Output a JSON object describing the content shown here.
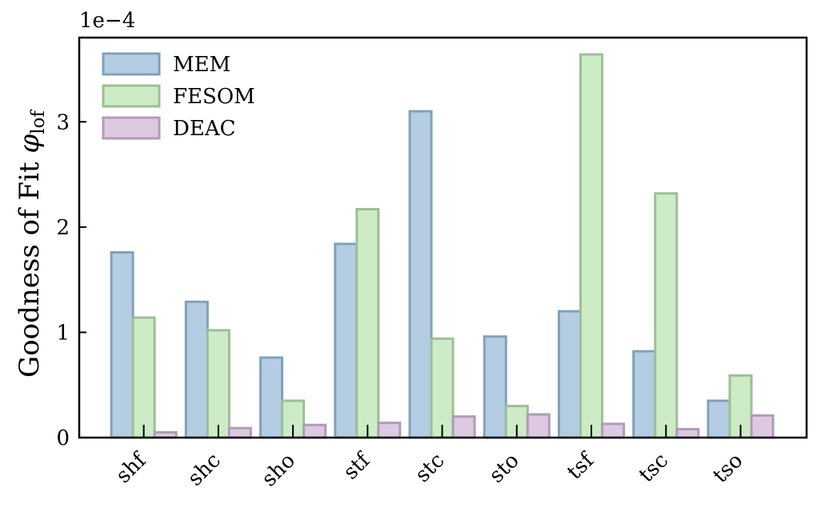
{
  "chart_data": {
    "type": "bar",
    "title": "",
    "xlabel": "",
    "ylabel": "Goodness of Fit",
    "ylabel_symbol": "φ",
    "ylabel_subscript": "lof",
    "offset_text": "1e−4",
    "scale": 0.0001,
    "ylim": [
      0,
      3.8
    ],
    "yticks": [
      0,
      1,
      2,
      3
    ],
    "ytick_labels": [
      "0",
      "1",
      "2",
      "3"
    ],
    "grid": false,
    "legend_position": "top-left",
    "categories": [
      "shf",
      "shc",
      "sho",
      "stf",
      "stc",
      "sto",
      "tsf",
      "tsc",
      "tso"
    ],
    "series": [
      {
        "name": "MEM",
        "fill": "#b4cde3",
        "stroke": "#81a1ba",
        "values": [
          1.76,
          1.29,
          0.76,
          1.84,
          3.1,
          0.96,
          1.2,
          0.82,
          0.35
        ]
      },
      {
        "name": "FESOM",
        "fill": "#cdebc6",
        "stroke": "#9dbf95",
        "values": [
          1.14,
          1.02,
          0.35,
          2.17,
          0.94,
          0.3,
          3.64,
          2.32,
          0.59
        ]
      },
      {
        "name": "DEAC",
        "fill": "#ddc9e2",
        "stroke": "#b09cb6",
        "values": [
          0.05,
          0.09,
          0.12,
          0.14,
          0.2,
          0.22,
          0.13,
          0.08,
          0.21
        ]
      }
    ]
  }
}
